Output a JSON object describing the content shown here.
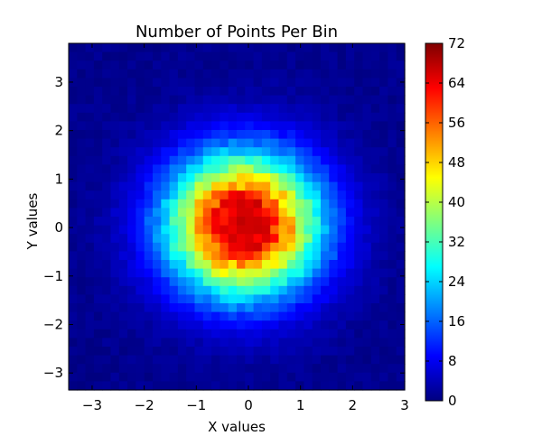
{
  "chart_data": {
    "type": "heatmap",
    "title": "Number of Points Per Bin",
    "xlabel": "X values",
    "ylabel": "Y values",
    "xlim": [
      -3.45,
      3.0
    ],
    "ylim": [
      -3.35,
      3.8
    ],
    "xticks": [
      -3,
      -2,
      -1,
      0,
      1,
      2,
      3
    ],
    "xtick_labels": [
      "−3",
      "−2",
      "−1",
      "0",
      "1",
      "2",
      "3"
    ],
    "yticks": [
      -3,
      -2,
      -1,
      0,
      1,
      2,
      3
    ],
    "ytick_labels": [
      "−3",
      "−2",
      "−1",
      "0",
      "1",
      "2",
      "3"
    ],
    "colorbar": {
      "min": 0,
      "max": 72,
      "ticks": [
        0,
        8,
        16,
        24,
        32,
        40,
        48,
        56,
        64,
        72
      ],
      "tick_labels": [
        "0",
        "8",
        "16",
        "24",
        "32",
        "40",
        "48",
        "56",
        "64",
        "72"
      ],
      "colormap": "jet"
    },
    "distribution": {
      "description_of_values": "bivariate normal counts per bin",
      "center": [
        -0.1,
        0.05
      ],
      "peak_count": 72,
      "sigma": 1.0
    },
    "grid": false
  },
  "colors": {
    "background": "#ffffff",
    "text": "#000000",
    "jet": [
      "#00007f",
      "#0000ff",
      "#007fff",
      "#00ffff",
      "#7fff7f",
      "#ffff00",
      "#ff7f00",
      "#ff0000",
      "#7f0000"
    ]
  }
}
